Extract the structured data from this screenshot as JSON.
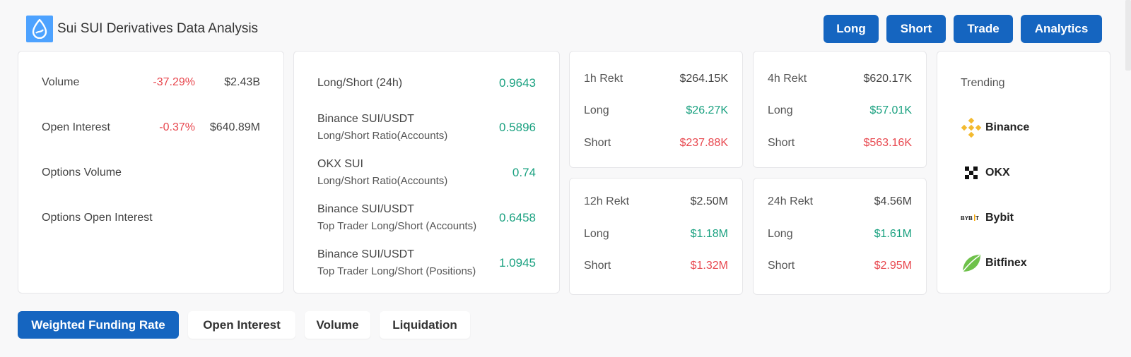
{
  "header": {
    "title": "Sui SUI Derivatives Data Analysis"
  },
  "top_buttons": {
    "long": "Long",
    "short": "Short",
    "trade": "Trade",
    "analytics": "Analytics"
  },
  "overview": {
    "volume": {
      "label": "Volume",
      "change": "-37.29%",
      "value": "$2.43B"
    },
    "open_interest": {
      "label": "Open Interest",
      "change": "-0.37%",
      "value": "$640.89M"
    },
    "options_volume": {
      "label": "Options Volume"
    },
    "options_open_interest": {
      "label": "Options Open Interest"
    }
  },
  "long_short": [
    {
      "line1": "Long/Short (24h)",
      "line2": "",
      "value": "0.9643"
    },
    {
      "line1": "Binance SUI/USDT",
      "line2": "Long/Short Ratio(Accounts)",
      "value": "0.5896"
    },
    {
      "line1": "OKX SUI",
      "line2": "Long/Short Ratio(Accounts)",
      "value": "0.74"
    },
    {
      "line1": "Binance SUI/USDT",
      "line2": "Top Trader Long/Short (Accounts)",
      "value": "0.6458"
    },
    {
      "line1": "Binance SUI/USDT",
      "line2": "Top Trader Long/Short (Positions)",
      "value": "1.0945"
    }
  ],
  "rekt": [
    {
      "title": "1h Rekt",
      "total": "$264.15K",
      "long_label": "Long",
      "long": "$26.27K",
      "short_label": "Short",
      "short": "$237.88K"
    },
    {
      "title": "4h Rekt",
      "total": "$620.17K",
      "long_label": "Long",
      "long": "$57.01K",
      "short_label": "Short",
      "short": "$563.16K"
    },
    {
      "title": "12h Rekt",
      "total": "$2.50M",
      "long_label": "Long",
      "long": "$1.18M",
      "short_label": "Short",
      "short": "$1.32M"
    },
    {
      "title": "24h Rekt",
      "total": "$4.56M",
      "long_label": "Long",
      "long": "$1.61M",
      "short_label": "Short",
      "short": "$2.95M"
    }
  ],
  "trending": {
    "title": "Trending",
    "exchanges": [
      {
        "name": "Binance",
        "icon": "binance-icon"
      },
      {
        "name": "OKX",
        "icon": "okx-icon"
      },
      {
        "name": "Bybit",
        "icon": "bybit-icon"
      },
      {
        "name": "Bitfinex",
        "icon": "bitfinex-icon"
      }
    ]
  },
  "tabs": [
    "Weighted Funding Rate",
    "Open Interest",
    "Volume",
    "Liquidation"
  ],
  "colors": {
    "accent": "#1565c0",
    "positive": "#1aa180",
    "negative": "#e8484f",
    "logo_bg": "#4da2ff"
  }
}
